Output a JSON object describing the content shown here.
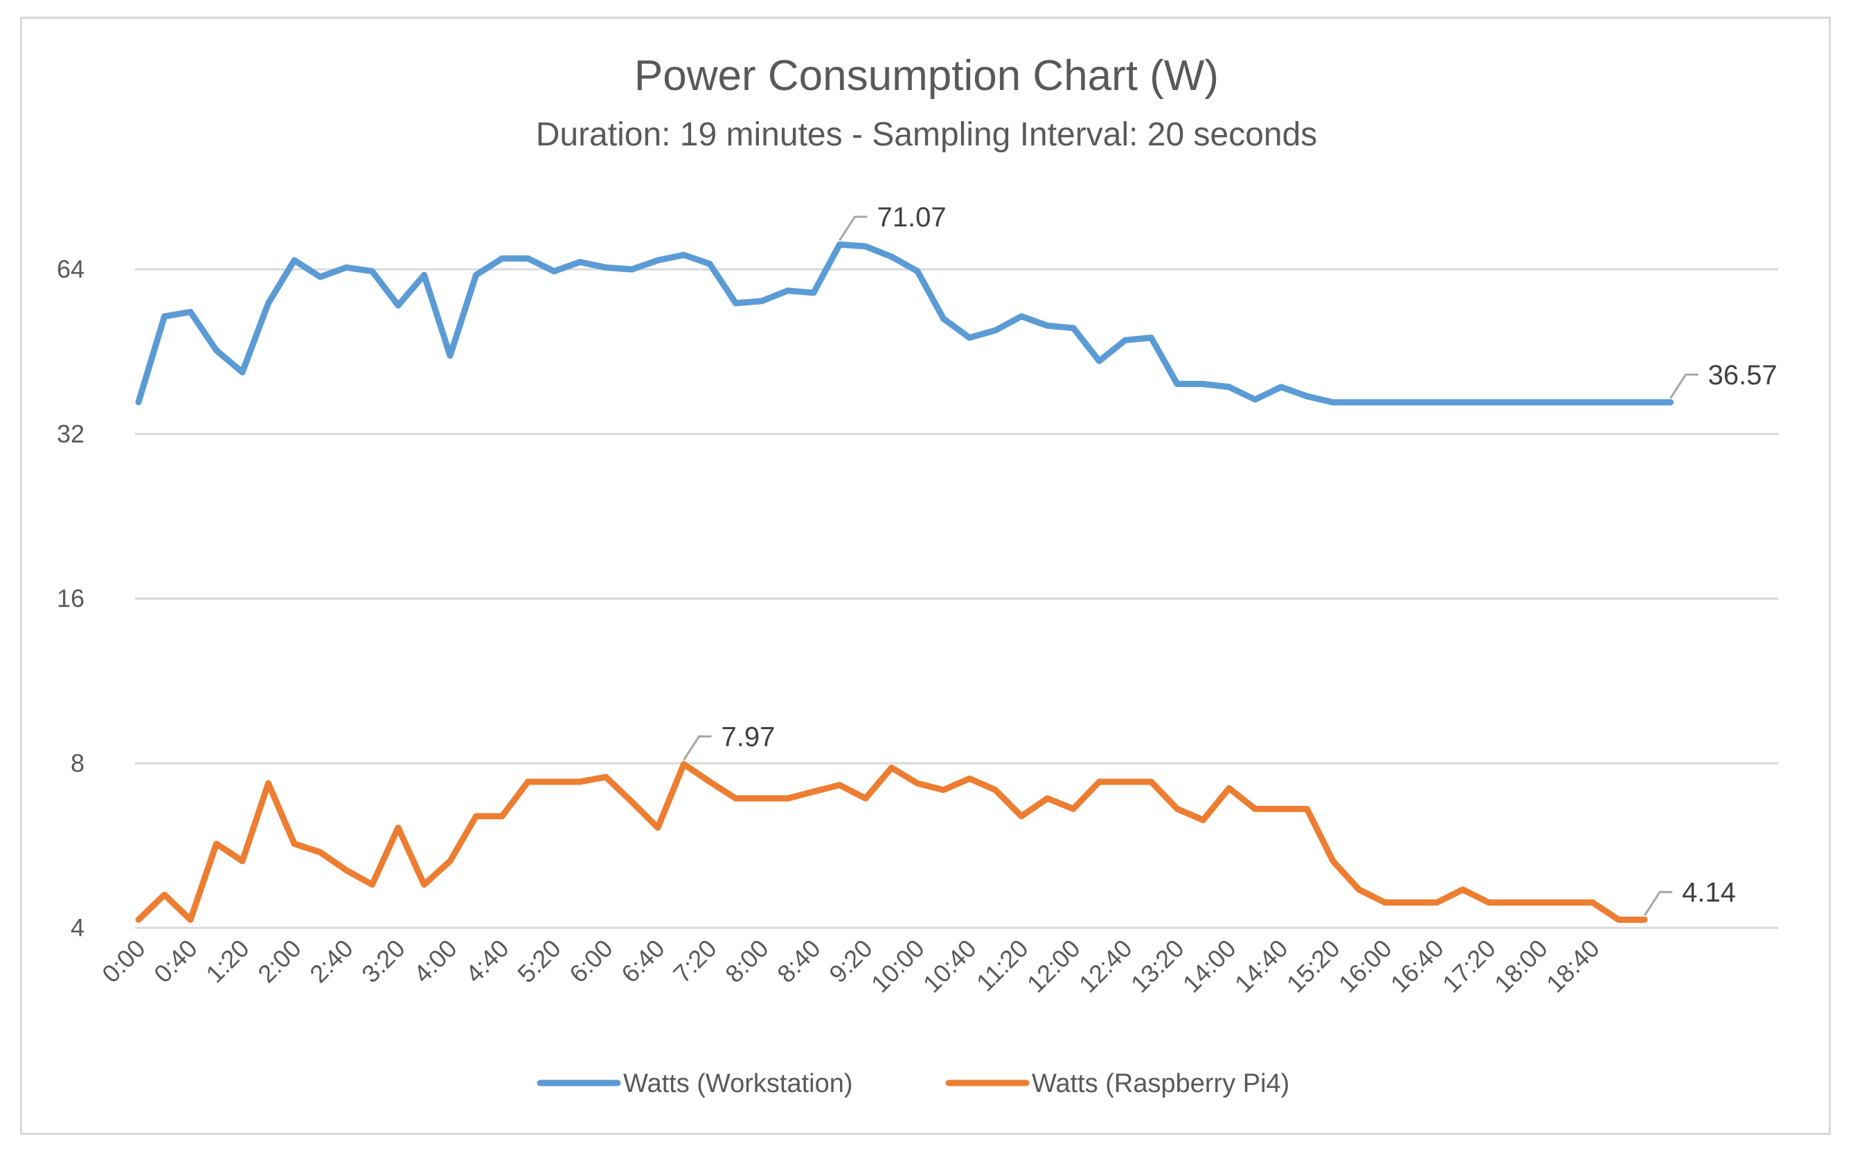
{
  "chart_data": {
    "type": "line",
    "title": "Power Consumption Chart (W)",
    "subtitle": "Duration: 19 minutes - Sampling Interval: 20 seconds",
    "y_scale": "log2",
    "ylim": [
      4,
      90
    ],
    "y_ticks": [
      {
        "value": 64,
        "label": "64"
      },
      {
        "value": 32,
        "label": "32"
      },
      {
        "value": 16,
        "label": "16"
      },
      {
        "value": 8,
        "label": "8"
      },
      {
        "value": 4,
        "label": "4"
      }
    ],
    "x_tick_labels": [
      "0:00",
      "0:40",
      "1:20",
      "2:00",
      "2:40",
      "3:20",
      "4:00",
      "4:40",
      "5:20",
      "6:00",
      "6:40",
      "7:20",
      "8:00",
      "8:40",
      "9:20",
      "10:00",
      "10:40",
      "11:20",
      "12:00",
      "12:40",
      "13:20",
      "14:00",
      "14:40",
      "15:20",
      "16:00",
      "16:40",
      "17:20",
      "18:00",
      "18:40"
    ],
    "x_step_seconds": 20,
    "series": [
      {
        "name": "Watts (Workstation)",
        "color": "#5b9bd5",
        "values": [
          36.6,
          52.5,
          53.5,
          45.5,
          41.5,
          55.5,
          66.5,
          62,
          64.5,
          63.5,
          55,
          62.5,
          44.5,
          62.5,
          67,
          67,
          63.5,
          66,
          64.5,
          64,
          66.5,
          68,
          65.5,
          55.5,
          56,
          58.5,
          58,
          71.07,
          70.5,
          67.5,
          63.5,
          52,
          48,
          49.5,
          52.5,
          50.5,
          50,
          43.5,
          47.5,
          48,
          39.5,
          39.5,
          39,
          37,
          39,
          37.5,
          36.57,
          36.57,
          36.57,
          36.57,
          36.57,
          36.57,
          36.57,
          36.57,
          36.57,
          36.57,
          36.57,
          36.57,
          36.57,
          36.57
        ],
        "annotations": [
          {
            "index": 27,
            "label": "71.07"
          },
          {
            "index": 59,
            "label": "36.57"
          }
        ]
      },
      {
        "name": "Watts (Raspberry Pi4)",
        "color": "#ed7d31",
        "values": [
          4.14,
          4.6,
          4.14,
          5.7,
          5.3,
          7.35,
          5.7,
          5.5,
          5.1,
          4.8,
          6.1,
          4.8,
          5.3,
          6.4,
          6.4,
          7.4,
          7.4,
          7.4,
          7.55,
          6.8,
          6.1,
          7.97,
          7.4,
          6.9,
          6.9,
          6.9,
          7.1,
          7.3,
          6.9,
          7.85,
          7.35,
          7.15,
          7.5,
          7.15,
          6.4,
          6.9,
          6.6,
          7.4,
          7.4,
          7.4,
          6.6,
          6.3,
          7.2,
          6.6,
          6.6,
          6.6,
          5.3,
          4.7,
          4.45,
          4.45,
          4.45,
          4.7,
          4.45,
          4.45,
          4.45,
          4.45,
          4.45,
          4.14,
          4.14
        ],
        "annotations": [
          {
            "index": 21,
            "label": "7.97"
          },
          {
            "index": 58,
            "label": "4.14"
          }
        ]
      }
    ],
    "legend_position": "bottom",
    "grid": true
  }
}
